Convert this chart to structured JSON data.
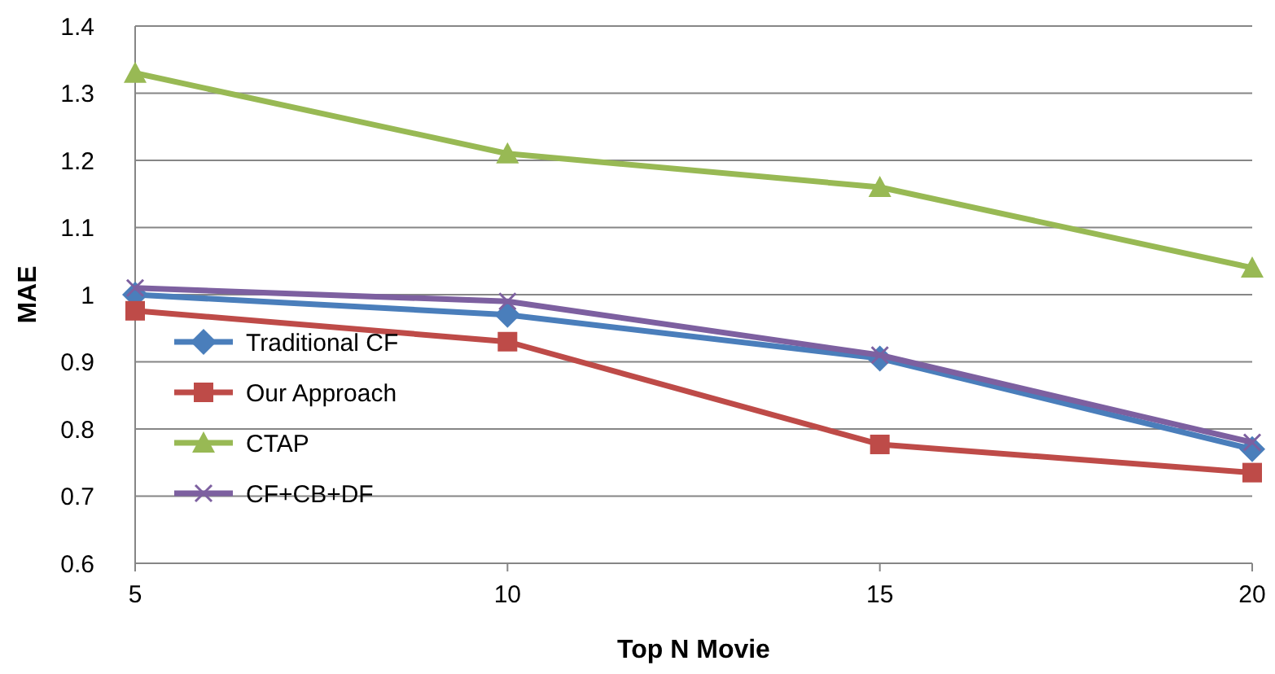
{
  "chart_data": {
    "type": "line",
    "xlabel": "Top N Movie",
    "ylabel": "MAE",
    "x": [
      5,
      10,
      15,
      20
    ],
    "xlim": [
      5,
      20
    ],
    "xticks": [
      5,
      10,
      15,
      20
    ],
    "ylim": [
      0.6,
      1.4
    ],
    "yticks": [
      0.6,
      0.7,
      0.8,
      0.9,
      1,
      1.1,
      1.2,
      1.3,
      1.4
    ],
    "grid": "y",
    "legend": "left",
    "series": [
      {
        "name": "Traditional CF",
        "color": "#4a7ebb",
        "marker": "diamond",
        "values": [
          1.0,
          0.97,
          0.905,
          0.77
        ]
      },
      {
        "name": "Our Approach",
        "color": "#be4b48",
        "marker": "square",
        "values": [
          0.976,
          0.93,
          0.777,
          0.735
        ]
      },
      {
        "name": "CTAP",
        "color": "#98b954",
        "marker": "triangle",
        "values": [
          1.33,
          1.21,
          1.16,
          1.04
        ]
      },
      {
        "name": "CF+CB+DF",
        "color": "#7d60a0",
        "marker": "cross",
        "values": [
          1.01,
          0.99,
          0.91,
          0.78
        ]
      }
    ]
  }
}
